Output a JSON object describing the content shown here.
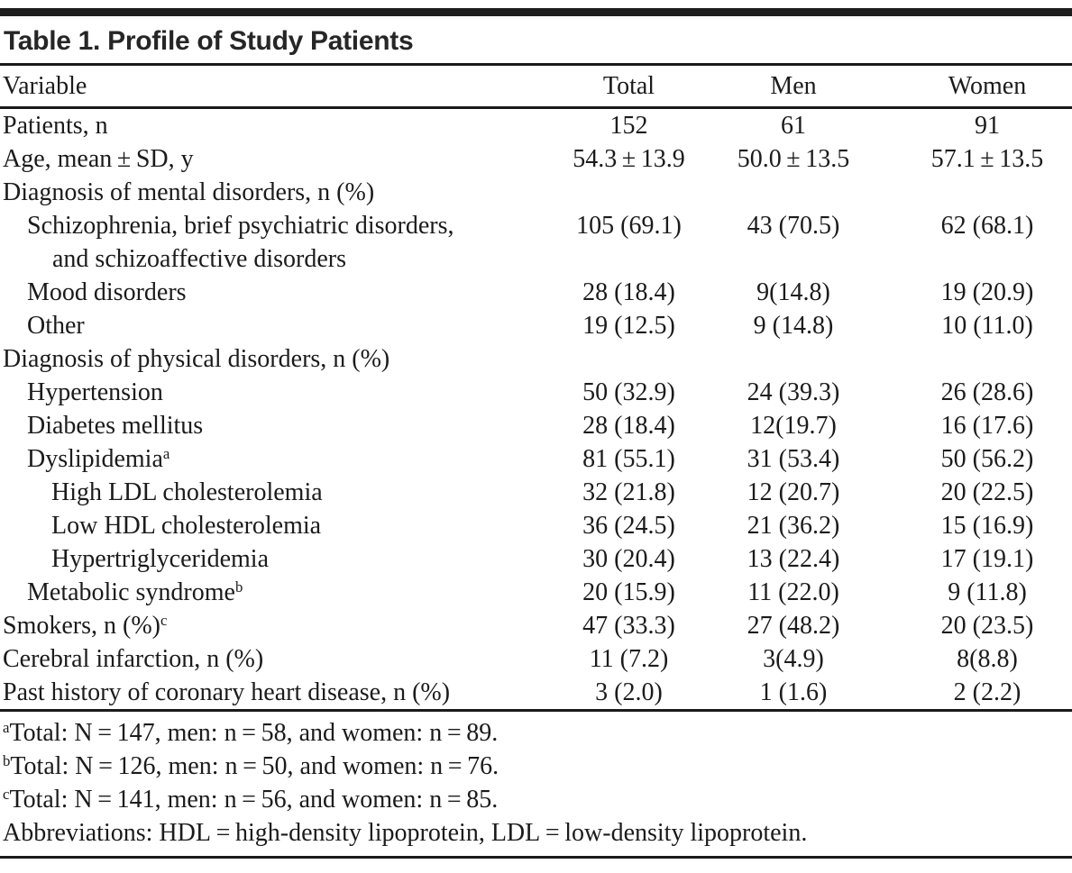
{
  "title": "Table 1. Profile of Study Patients",
  "colors": {
    "text": "#1b1b1b",
    "rule": "#1a1a1a",
    "top_bar": "#1d1d1d"
  },
  "table": {
    "columns": [
      "Variable",
      "Total",
      "Men",
      "Women"
    ],
    "rows": [
      {
        "label": "Patients, n",
        "indent": 0,
        "total": "152",
        "men": "61",
        "women": "91"
      },
      {
        "label": "Age, mean ± SD, y",
        "indent": 0,
        "total": "54.3 ± 13.9",
        "men": "50.0 ± 13.5",
        "women": "57.1 ± 13.5"
      },
      {
        "label": "Diagnosis of mental disorders, n (%)",
        "indent": 0,
        "total": "",
        "men": "",
        "women": ""
      },
      {
        "label": "Schizophrenia, brief psychiatric disorders,",
        "label_line2": "and schizoaffective disorders",
        "indent": 1,
        "total": "105 (69.1)",
        "men": "43 (70.5)",
        "women": "62 (68.1)"
      },
      {
        "label": "Mood disorders",
        "indent": 1,
        "total": "28 (18.4)",
        "men": "9(14.8)",
        "women": "19 (20.9)"
      },
      {
        "label": "Other",
        "indent": 1,
        "total": "19 (12.5)",
        "men": "9 (14.8)",
        "women": "10 (11.0)"
      },
      {
        "label": "Diagnosis of physical disorders, n (%)",
        "indent": 0,
        "total": "",
        "men": "",
        "women": ""
      },
      {
        "label": "Hypertension",
        "indent": 1,
        "total": "50 (32.9)",
        "men": "24 (39.3)",
        "women": "26 (28.6)"
      },
      {
        "label": "Diabetes mellitus",
        "indent": 1,
        "total": "28 (18.4)",
        "men": "12(19.7)",
        "women": "16 (17.6)"
      },
      {
        "label": "Dyslipidemia",
        "sup": "a",
        "indent": 1,
        "total": "81 (55.1)",
        "men": "31 (53.4)",
        "women": "50 (56.2)"
      },
      {
        "label": "High LDL cholesterolemia",
        "indent": 2,
        "total": "32 (21.8)",
        "men": "12 (20.7)",
        "women": "20 (22.5)"
      },
      {
        "label": "Low HDL cholesterolemia",
        "indent": 2,
        "total": "36 (24.5)",
        "men": "21 (36.2)",
        "women": "15 (16.9)"
      },
      {
        "label": "Hypertriglyceridemia",
        "indent": 2,
        "total": "30 (20.4)",
        "men": "13 (22.4)",
        "women": "17 (19.1)"
      },
      {
        "label": "Metabolic syndrome",
        "sup": "b",
        "indent": 1,
        "total": "20 (15.9)",
        "men": "11 (22.0)",
        "women": "9 (11.8)"
      },
      {
        "label": "Smokers, n (%)",
        "sup": "c",
        "indent": 0,
        "total": "47 (33.3)",
        "men": "27 (48.2)",
        "women": "20 (23.5)"
      },
      {
        "label": "Cerebral infarction, n (%)",
        "indent": 0,
        "total": "11 (7.2)",
        "men": "3(4.9)",
        "women": "8(8.8)"
      },
      {
        "label": "Past history of coronary heart disease, n (%)",
        "indent": 0,
        "total": "3 (2.0)",
        "men": "1 (1.6)",
        "women": "2 (2.2)"
      }
    ]
  },
  "footnotes": [
    {
      "marker": "a",
      "text": "Total: N = 147, men: n = 58, and women: n = 89."
    },
    {
      "marker": "b",
      "text": "Total: N = 126, men: n = 50, and women: n = 76."
    },
    {
      "marker": "c",
      "text": "Total: N = 141, men: n = 56, and women: n = 85."
    },
    {
      "marker": "",
      "text": "Abbreviations: HDL = high-density lipoprotein, LDL = low-density lipoprotein."
    }
  ]
}
